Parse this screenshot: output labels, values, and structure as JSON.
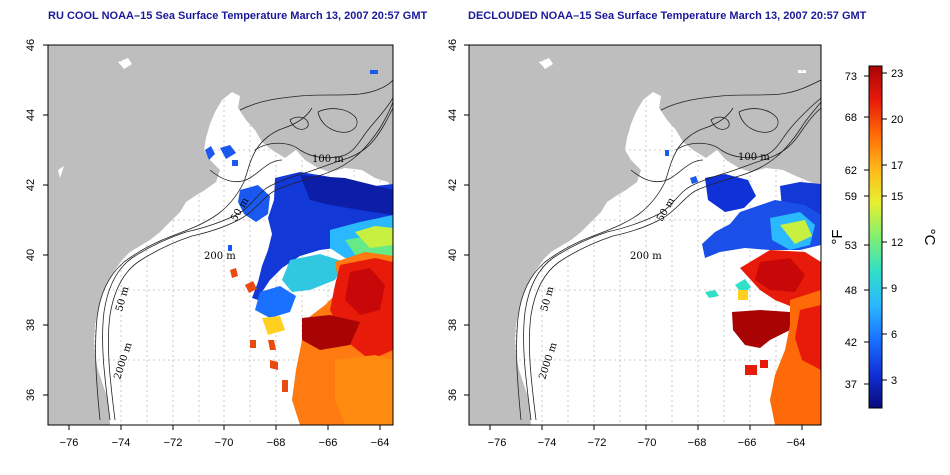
{
  "left_map": {
    "title": "RU COOL NOAA–15 Sea Surface Temperature March 13, 2007 20:57 GMT"
  },
  "right_map": {
    "title": "DECLOUDED NOAA–15 Sea Surface Temperature March 13, 2007 20:57 GMT"
  },
  "axes": {
    "x_ticks": [
      "−76",
      "−74",
      "−72",
      "−70",
      "−68",
      "−66",
      "−64"
    ],
    "y_ticks": [
      "46",
      "44",
      "42",
      "40",
      "38",
      "36"
    ]
  },
  "contour_labels": {
    "m100": "100 m",
    "m200": "200 m",
    "m50a": "50 m",
    "m50b": "50 m",
    "m2000": "2000 m"
  },
  "colorbar": {
    "f_ticks": [
      "73",
      "68",
      "62",
      "59",
      "53",
      "48",
      "42",
      "37"
    ],
    "c_ticks": [
      "23",
      "20",
      "17",
      "15",
      "12",
      "9",
      "6",
      "3"
    ],
    "f_unit": "°F",
    "c_unit": "°C",
    "range_c": [
      1,
      24
    ],
    "colors": [
      "#0a0a7a",
      "#1030d8",
      "#1a70ff",
      "#2ab8ff",
      "#30e0c8",
      "#80f070",
      "#e8f030",
      "#ffb818",
      "#ff6a08",
      "#e81a0a",
      "#a80404"
    ]
  },
  "palette": {
    "land": "#bebebe",
    "ocean": "#ffffff",
    "grid": "#bdbdbd"
  }
}
